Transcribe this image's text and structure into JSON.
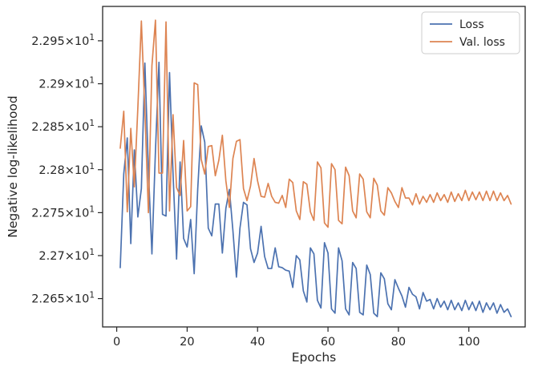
{
  "chart_data": {
    "type": "line",
    "xlabel": "Epochs",
    "ylabel": "Negative log-likelihood",
    "xlim": [
      -4,
      116
    ],
    "ylim": [
      22.617,
      22.99
    ],
    "grid": false,
    "legend_position": "top-right",
    "x_ticks": [
      0,
      20,
      40,
      60,
      80,
      100
    ],
    "x_tick_labels": [
      "0",
      "20",
      "40",
      "60",
      "80",
      "100"
    ],
    "y_ticks": [
      22.65,
      22.7,
      22.75,
      22.8,
      22.85,
      22.9,
      22.95
    ],
    "y_tick_mantissas": [
      "2.265",
      "2.27",
      "2.275",
      "2.28",
      "2.285",
      "2.29",
      "2.295"
    ],
    "y_tick_base": "10",
    "y_tick_exponent": "1",
    "y_tick_times": "×",
    "series": [
      {
        "name": "Loss",
        "color": "#4c72b0",
        "x": [
          1,
          2,
          3,
          4,
          5,
          6,
          7,
          8,
          9,
          10,
          11,
          12,
          13,
          14,
          15,
          16,
          17,
          18,
          19,
          20,
          21,
          22,
          23,
          24,
          25,
          26,
          27,
          28,
          29,
          30,
          31,
          32,
          33,
          34,
          35,
          36,
          37,
          38,
          39,
          40,
          41,
          42,
          43,
          44,
          45,
          46,
          47,
          48,
          49,
          50,
          51,
          52,
          53,
          54,
          55,
          56,
          57,
          58,
          59,
          60,
          61,
          62,
          63,
          64,
          65,
          66,
          67,
          68,
          69,
          70,
          71,
          72,
          73,
          74,
          75,
          76,
          77,
          78,
          79,
          80,
          81,
          82,
          83,
          84,
          85,
          86,
          87,
          88,
          89,
          90,
          91,
          92,
          93,
          94,
          95,
          96,
          97,
          98,
          99,
          100,
          101,
          102,
          103,
          104,
          105,
          106,
          107,
          108,
          109,
          110,
          111,
          112
        ],
        "values": [
          22.686,
          22.795,
          22.837,
          22.714,
          22.823,
          22.745,
          22.778,
          22.924,
          22.8,
          22.702,
          22.822,
          22.925,
          22.748,
          22.746,
          22.913,
          22.795,
          22.696,
          22.809,
          22.72,
          22.71,
          22.742,
          22.679,
          22.777,
          22.851,
          22.832,
          22.732,
          22.723,
          22.76,
          22.76,
          22.703,
          22.755,
          22.777,
          22.729,
          22.675,
          22.732,
          22.762,
          22.759,
          22.708,
          22.692,
          22.703,
          22.734,
          22.699,
          22.685,
          22.685,
          22.709,
          22.687,
          22.686,
          22.683,
          22.682,
          22.663,
          22.7,
          22.695,
          22.659,
          22.646,
          22.709,
          22.702,
          22.648,
          22.639,
          22.715,
          22.703,
          22.638,
          22.633,
          22.709,
          22.694,
          22.638,
          22.631,
          22.692,
          22.685,
          22.634,
          22.631,
          22.689,
          22.678,
          22.633,
          22.629,
          22.68,
          22.673,
          22.644,
          22.637,
          22.672,
          22.662,
          22.653,
          22.64,
          22.663,
          22.655,
          22.652,
          22.638,
          22.657,
          22.647,
          22.649,
          22.638,
          22.65,
          22.64,
          22.647,
          22.637,
          22.648,
          22.637,
          22.645,
          22.636,
          22.648,
          22.637,
          22.646,
          22.636,
          22.647,
          22.634,
          22.645,
          22.637,
          22.645,
          22.633,
          22.643,
          22.634,
          22.638,
          22.629
        ]
      },
      {
        "name": "Val. loss",
        "color": "#dd8452",
        "x": [
          1,
          2,
          3,
          4,
          5,
          6,
          7,
          8,
          9,
          10,
          11,
          12,
          13,
          14,
          15,
          16,
          17,
          18,
          19,
          20,
          21,
          22,
          23,
          24,
          25,
          26,
          27,
          28,
          29,
          30,
          31,
          32,
          33,
          34,
          35,
          36,
          37,
          38,
          39,
          40,
          41,
          42,
          43,
          44,
          45,
          46,
          47,
          48,
          49,
          50,
          51,
          52,
          53,
          54,
          55,
          56,
          57,
          58,
          59,
          60,
          61,
          62,
          63,
          64,
          65,
          66,
          67,
          68,
          69,
          70,
          71,
          72,
          73,
          74,
          75,
          76,
          77,
          78,
          79,
          80,
          81,
          82,
          83,
          84,
          85,
          86,
          87,
          88,
          89,
          90,
          91,
          92,
          93,
          94,
          95,
          96,
          97,
          98,
          99,
          100,
          101,
          102,
          103,
          104,
          105,
          106,
          107,
          108,
          109,
          110,
          111,
          112
        ],
        "values": [
          22.825,
          22.868,
          22.751,
          22.848,
          22.78,
          22.872,
          22.973,
          22.868,
          22.75,
          22.921,
          22.974,
          22.796,
          22.796,
          22.972,
          22.752,
          22.864,
          22.779,
          22.77,
          22.834,
          22.752,
          22.757,
          22.901,
          22.899,
          22.812,
          22.795,
          22.827,
          22.828,
          22.793,
          22.811,
          22.84,
          22.787,
          22.756,
          22.813,
          22.833,
          22.835,
          22.778,
          22.764,
          22.781,
          22.813,
          22.787,
          22.769,
          22.768,
          22.784,
          22.769,
          22.762,
          22.761,
          22.77,
          22.756,
          22.789,
          22.785,
          22.752,
          22.742,
          22.786,
          22.783,
          22.751,
          22.741,
          22.809,
          22.802,
          22.738,
          22.733,
          22.807,
          22.8,
          22.741,
          22.737,
          22.803,
          22.793,
          22.752,
          22.744,
          22.795,
          22.789,
          22.751,
          22.744,
          22.79,
          22.782,
          22.752,
          22.747,
          22.779,
          22.773,
          22.763,
          22.756,
          22.779,
          22.767,
          22.767,
          22.759,
          22.772,
          22.76,
          22.769,
          22.762,
          22.771,
          22.762,
          22.773,
          22.764,
          22.771,
          22.762,
          22.774,
          22.763,
          22.772,
          22.764,
          22.776,
          22.764,
          22.774,
          22.765,
          22.774,
          22.764,
          22.775,
          22.764,
          22.775,
          22.764,
          22.773,
          22.764,
          22.77,
          22.76
        ]
      }
    ]
  }
}
